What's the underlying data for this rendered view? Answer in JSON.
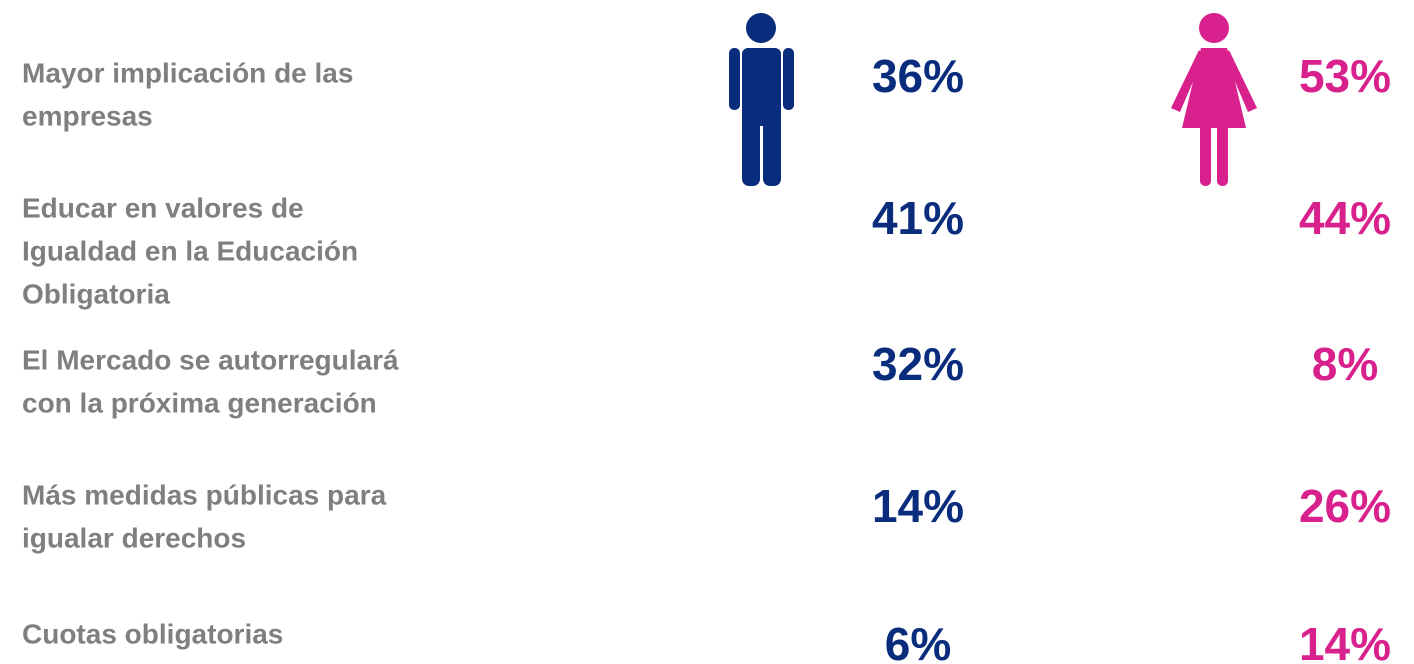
{
  "rows": [
    {
      "label": [
        "Mayor implicación de las",
        "empresas"
      ],
      "men": "36%",
      "women": "53%"
    },
    {
      "label": [
        "Educar en valores de",
        "Igualdad en la Educación",
        "Obligatoria"
      ],
      "men": "41%",
      "women": "44%"
    },
    {
      "label": [
        "El Mercado se autorregulará",
        "con la próxima generación"
      ],
      "men": "32%",
      "women": "8%"
    },
    {
      "label": [
        "Más medidas públicas para",
        "igualar derechos"
      ],
      "men": "14%",
      "women": "26%"
    },
    {
      "label": [
        "Cuotas obligatorias"
      ],
      "men": "6%",
      "women": "14%"
    }
  ]
}
